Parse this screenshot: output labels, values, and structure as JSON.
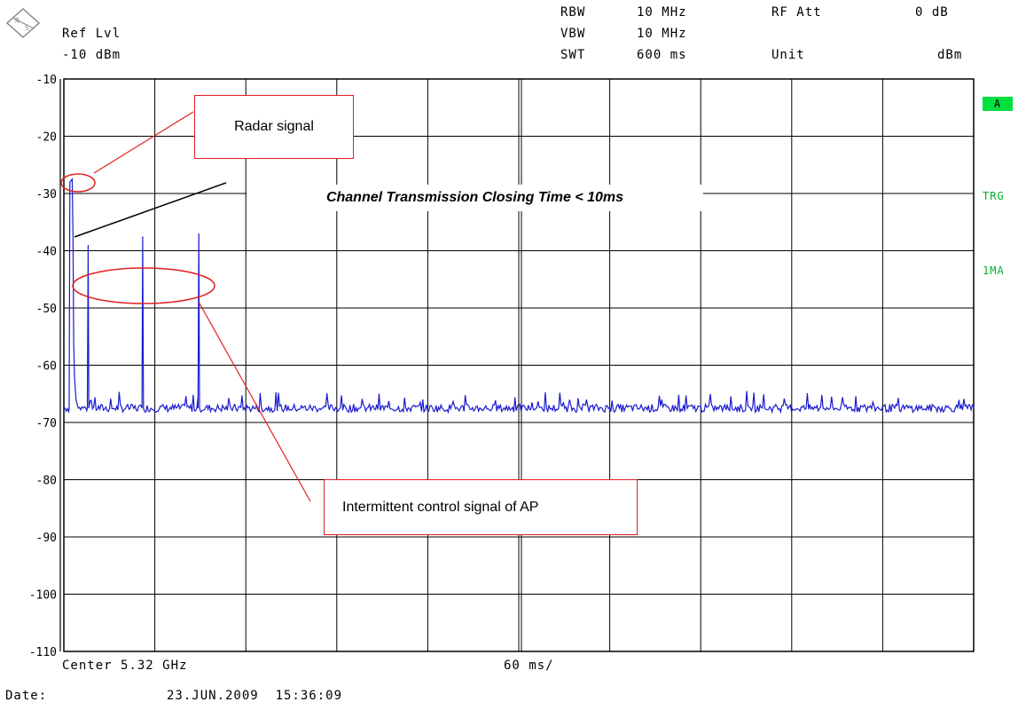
{
  "header": {
    "ref_lvl_label": "Ref Lvl",
    "ref_lvl_value": "-10 dBm",
    "rbw_label": "RBW",
    "rbw_value": "10 MHz",
    "vbw_label": "VBW",
    "vbw_value": "10 MHz",
    "swt_label": "SWT",
    "swt_value": "600 ms",
    "rf_att_label": "RF Att",
    "rf_att_value": "0 dB",
    "unit_label": "Unit",
    "unit_value": "dBm"
  },
  "status": {
    "trace": "A",
    "trigger": "TRG",
    "detector": "1MA"
  },
  "footer": {
    "center": "Center 5.32 GHz",
    "div": "60 ms/",
    "date_label": "Date:",
    "date_value": "23.JUN.2009  15:36:09"
  },
  "annotations": {
    "radar": "Radar signal",
    "closing": "Channel Transmission Closing Time < 10ms",
    "control": "Intermittent control signal of AP"
  },
  "colors": {
    "trace": "#1a1ad0",
    "grid": "#000000",
    "annotation": "#e02020",
    "active_badge": "#00e040"
  },
  "chart_data": {
    "type": "line",
    "xlabel": "",
    "ylabel": "",
    "xlim": [
      0,
      600
    ],
    "ylim": [
      -110,
      -10
    ],
    "y_ticks": [
      -10,
      -20,
      -30,
      -40,
      -50,
      -60,
      -70,
      -80,
      -90,
      -100,
      -110
    ],
    "y_tick_labels": [
      "-10",
      "-20",
      "-30",
      "-40",
      "-50",
      "-60",
      "-70",
      "-80",
      "-90",
      "-100",
      "-110"
    ],
    "grid": true,
    "x_divisions": 10,
    "series": [
      {
        "noise_floor_dbm": -67.5,
        "points": [
          [
            0,
            -67.5
          ],
          [
            3.5,
            -67.5
          ],
          [
            4,
            -28
          ],
          [
            5.5,
            -27.5
          ],
          [
            6,
            -37
          ],
          [
            6.5,
            -56
          ],
          [
            7,
            -62
          ],
          [
            8,
            -66
          ],
          [
            9.5,
            -67.5
          ],
          [
            15.5,
            -67.5
          ],
          [
            16,
            -39
          ],
          [
            16.5,
            -67.5
          ],
          [
            51.5,
            -67.5
          ],
          [
            52,
            -37.5
          ],
          [
            52.5,
            -67.5
          ],
          [
            88.5,
            -67.5
          ],
          [
            89,
            -37
          ],
          [
            89.5,
            -67.5
          ],
          [
            600,
            -67.5
          ]
        ]
      }
    ]
  }
}
